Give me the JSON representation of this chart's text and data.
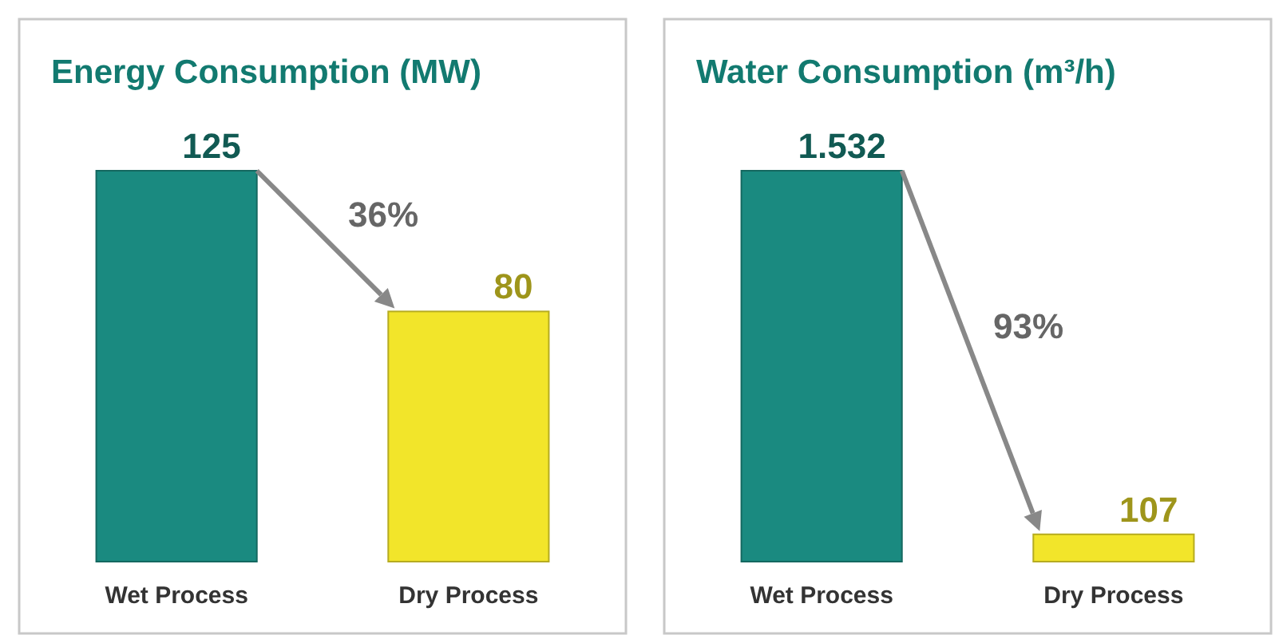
{
  "chart_data": [
    {
      "type": "bar",
      "title": "Energy Consumption (MW)",
      "categories": [
        "Wet Process",
        "Dry Process"
      ],
      "values": [
        125,
        80
      ],
      "colors": [
        "#1a8a80",
        "#f2e52a"
      ],
      "data_labels": true,
      "annotations": [
        "36%"
      ]
    },
    {
      "type": "bar",
      "title": "Water Consumption (m³/h)",
      "categories": [
        "Wet Process",
        "Dry Process"
      ],
      "values": [
        1532,
        107
      ],
      "colors": [
        "#1a8a80",
        "#f2e52a"
      ],
      "value_labels": [
        "1.532",
        "107"
      ],
      "annotations": [
        "93%"
      ]
    }
  ]
}
